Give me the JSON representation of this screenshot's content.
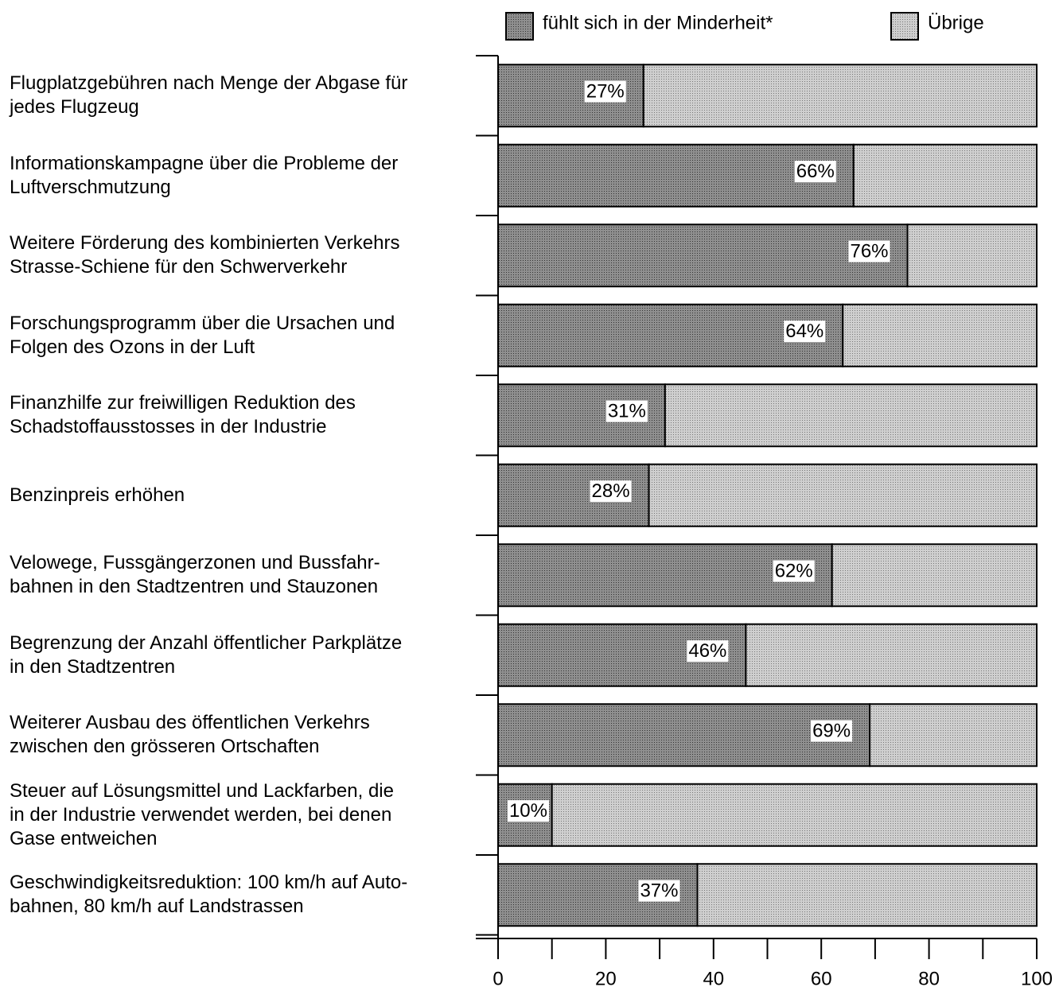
{
  "chart_data": {
    "type": "stacked_barh",
    "categories": [
      "Flugplatzgebühren nach Menge der Abgase für\njedes Flugzeug",
      "Informationskampagne über die Probleme der\nLuftverschmutzung",
      "Weitere Förderung des kombinierten Verkehrs\nStrasse-Schiene für den Schwerverkehr",
      "Forschungsprogramm über die Ursachen und\nFolgen des Ozons in der Luft",
      "Finanzhilfe zur freiwilligen Reduktion des\nSchadstoffausstosses in der Industrie",
      "Benzinpreis erhöhen",
      "Velowege, Fussgängerzonen und Bussfahr-\nbahnen in den Stadtzentren und Stauzonen",
      "Begrenzung der Anzahl öffentlicher Parkplätze\nin den Stadtzentren",
      "Weiterer Ausbau des öffentlichen Verkehrs\nzwischen den grösseren Ortschaften",
      "Steuer auf Lösungsmittel und Lackfarben, die\nin der Industrie verwendet werden, bei denen\nGase entweichen",
      "Geschwindigkeitsreduktion: 100 km/h auf Auto-\nbahnen, 80 km/h auf Landstrassen"
    ],
    "series": [
      {
        "name": "fühlt sich in der Minderheit*",
        "color": "#8f8f8f",
        "values": [
          27,
          66,
          76,
          64,
          31,
          28,
          62,
          46,
          69,
          10,
          37
        ],
        "value_labels": [
          "27%",
          "66%",
          "76%",
          "64%",
          "31%",
          "28%",
          "62%",
          "46%",
          "69%",
          "10%",
          "37%"
        ]
      },
      {
        "name": "Übrige",
        "color": "#cfcfcf",
        "values": [
          73,
          34,
          24,
          36,
          69,
          72,
          38,
          54,
          31,
          90,
          63
        ]
      }
    ],
    "xlim": [
      0,
      100
    ],
    "xticks": [
      0,
      20,
      40,
      60,
      80,
      100
    ],
    "minor_xticks": [
      10,
      30,
      50,
      70,
      90
    ]
  }
}
